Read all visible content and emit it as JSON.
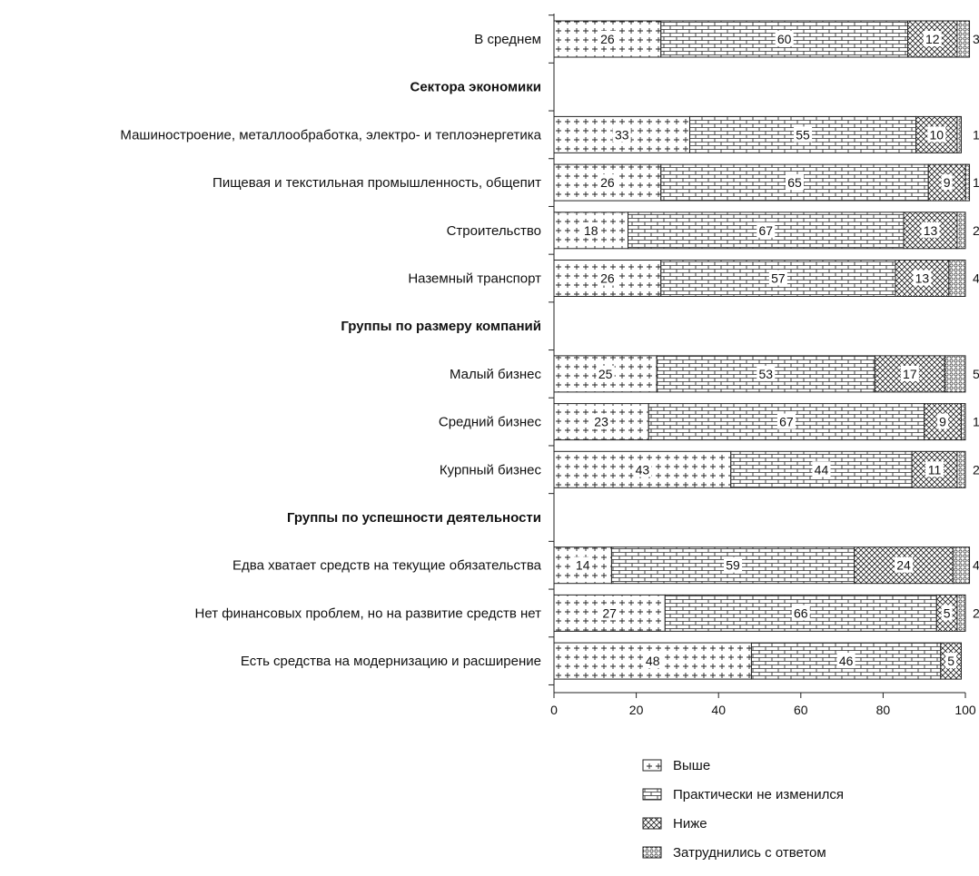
{
  "chart_data": {
    "type": "bar",
    "orientation": "horizontal",
    "stacked": true,
    "xlim": [
      0,
      100
    ],
    "xticks": [
      0,
      20,
      40,
      60,
      80,
      100
    ],
    "grid": false,
    "legend_position": "bottom",
    "series": [
      {
        "name": "Выше",
        "pattern": "plus",
        "color": "#ffffff"
      },
      {
        "name": "Практически не изменился",
        "pattern": "brick",
        "color": "#ffffff"
      },
      {
        "name": "Ниже",
        "pattern": "crosshatch",
        "color": "#ffffff"
      },
      {
        "name": "Затруднились с ответом",
        "pattern": "circles",
        "color": "#ffffff"
      }
    ],
    "rows": [
      {
        "kind": "bar",
        "label": "В среднем",
        "values": [
          26,
          60,
          12,
          3
        ],
        "labels": [
          "26",
          "60",
          "12",
          "3"
        ]
      },
      {
        "kind": "group",
        "label": "Сектора экономики"
      },
      {
        "kind": "bar",
        "label": "Машиностроение, металлообработка, электро- и теплоэнергетика",
        "values": [
          33,
          55,
          10,
          1
        ],
        "labels": [
          "33",
          "55",
          "10",
          "1"
        ]
      },
      {
        "kind": "bar",
        "label": "Пищевая и текстильная промышленность, общепит",
        "values": [
          26,
          65,
          9,
          1
        ],
        "labels": [
          "26",
          "65",
          "9",
          "1"
        ]
      },
      {
        "kind": "bar",
        "label": "Строительство",
        "values": [
          18,
          67,
          13,
          2
        ],
        "labels": [
          "18",
          "67",
          "13",
          "2"
        ]
      },
      {
        "kind": "bar",
        "label": "Наземный транспорт",
        "values": [
          26,
          57,
          13,
          4
        ],
        "labels": [
          "26",
          "57",
          "13",
          "4"
        ]
      },
      {
        "kind": "group",
        "label": "Группы по размеру компаний"
      },
      {
        "kind": "bar",
        "label": "Малый бизнес",
        "values": [
          25,
          53,
          17,
          5
        ],
        "labels": [
          "25",
          "53",
          "17",
          "5"
        ]
      },
      {
        "kind": "bar",
        "label": "Средний бизнес",
        "values": [
          23,
          67,
          9,
          1
        ],
        "labels": [
          "23",
          "67",
          "9",
          "1"
        ]
      },
      {
        "kind": "bar",
        "label": "Курпный бизнес",
        "values": [
          43,
          44,
          11,
          2
        ],
        "labels": [
          "43",
          "44",
          "11",
          "2"
        ]
      },
      {
        "kind": "group",
        "label": "Группы по успешности деятельности"
      },
      {
        "kind": "bar",
        "label": "Едва хватает средств на текущие обязательства",
        "values": [
          14,
          59,
          24,
          4
        ],
        "labels": [
          "14",
          "59",
          "24",
          "4"
        ]
      },
      {
        "kind": "bar",
        "label": "Нет финансовых проблем, но на развитие средств нет",
        "values": [
          27,
          66,
          5,
          2
        ],
        "labels": [
          "27",
          "66",
          "5",
          "2"
        ]
      },
      {
        "kind": "bar",
        "label": "Есть средства на модернизацию и расширение",
        "values": [
          48,
          46,
          5,
          0
        ],
        "labels": [
          "48",
          "46",
          "5",
          ""
        ]
      }
    ]
  }
}
